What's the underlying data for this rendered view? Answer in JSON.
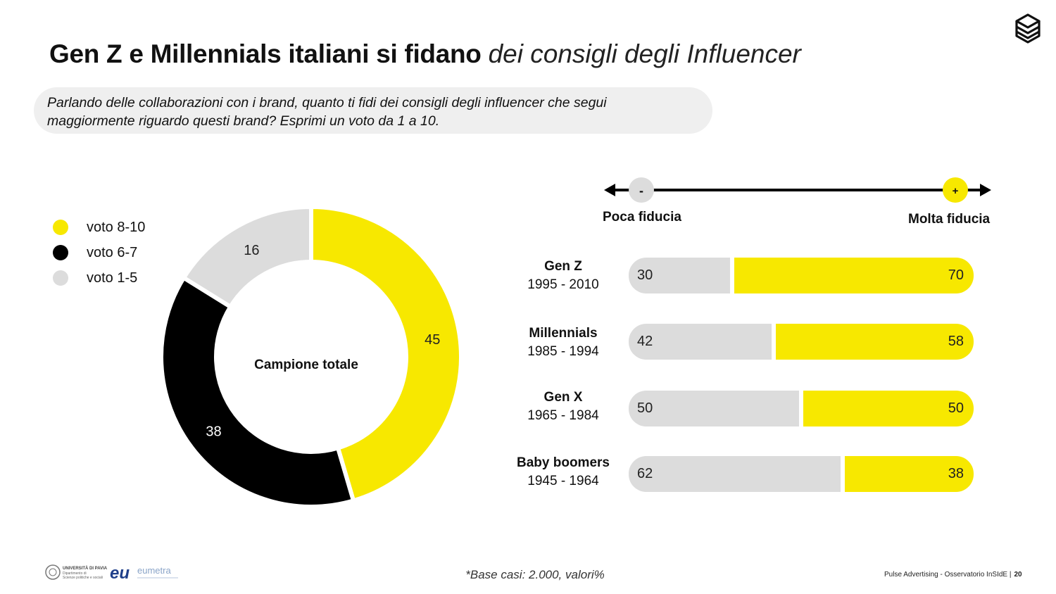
{
  "title": {
    "bold": "Gen Z e Millennials italiani si fidano",
    "italic": "dei consigli degli Influencer"
  },
  "question": "Parlando delle collaborazioni con i brand, quanto ti fidi dei consigli degli influencer che segui maggiormente riguardo questi brand? Esprimi un voto da 1 a 10.",
  "logo_icon": "layered-stack-icon",
  "colors": {
    "yellow": "#f7e800",
    "black": "#000000",
    "grey": "#dcdcdc"
  },
  "scale": {
    "minus_symbol": "-",
    "plus_symbol": "+",
    "low_label": "Poca fiducia",
    "high_label": "Molta fiducia"
  },
  "footnote": "*Base casi: 2.000, valori%",
  "footer": {
    "source": "Pulse Advertising - Osservatorio InSIdE |",
    "page": "20"
  },
  "logos": {
    "university": "UNIVERSITÀ DI PAVIA",
    "university_sub1": "Dipartimento di",
    "university_sub2": "Scienze politiche e sociali",
    "eumetra_mark": "eu",
    "eumetra_name": "eumetra"
  },
  "chart_data": [
    {
      "type": "pie",
      "center_label": "Campione totale",
      "legend_placement": "top-left",
      "slices": [
        {
          "label": "voto 8-10",
          "value": 45,
          "color": "#f7e800"
        },
        {
          "label": "voto 6-7",
          "value": 38,
          "color": "#000000"
        },
        {
          "label": "voto 1-5",
          "value": 16,
          "color": "#dcdcdc"
        }
      ]
    },
    {
      "type": "bar",
      "orientation": "horizontal-stacked",
      "categories": [
        {
          "name": "Gen Z",
          "years": "1995 - 2010"
        },
        {
          "name": "Millennials",
          "years": "1985 - 1994"
        },
        {
          "name": "Gen X",
          "years": "1965 - 1984"
        },
        {
          "name": "Baby boomers",
          "years": "1945 - 1964"
        }
      ],
      "series": [
        {
          "color": "#dcdcdc",
          "values": [
            30,
            42,
            50,
            62
          ]
        },
        {
          "color": "#f7e800",
          "values": [
            70,
            58,
            50,
            38
          ]
        }
      ],
      "xlim": [
        0,
        100
      ]
    }
  ]
}
